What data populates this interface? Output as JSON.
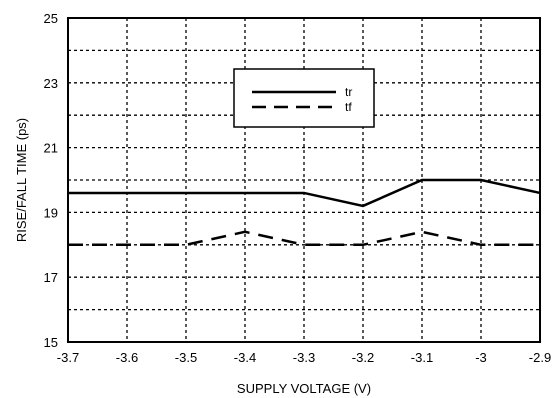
{
  "chart_data": {
    "type": "line",
    "title": "",
    "xlabel": "SUPPLY VOLTAGE (V)",
    "ylabel": "RISE/FALL TIME (ps)",
    "xlim": [
      -3.7,
      -2.9
    ],
    "ylim": [
      15,
      25
    ],
    "x_ticks": [
      "-3.7",
      "-3.6",
      "-3.5",
      "-3.4",
      "-3.3",
      "-3.2",
      "-3.1",
      "-3",
      "-2.9"
    ],
    "y_ticks": [
      "15",
      "17",
      "19",
      "21",
      "23",
      "25"
    ],
    "grid": true,
    "legend_position": "top-center",
    "series": [
      {
        "name": "tr",
        "style": "solid",
        "x": [
          -3.7,
          -3.6,
          -3.5,
          -3.4,
          -3.3,
          -3.2,
          -3.1,
          -3.0,
          -2.9
        ],
        "y": [
          19.6,
          19.6,
          19.6,
          19.6,
          19.6,
          19.2,
          20.0,
          20.0,
          19.6
        ]
      },
      {
        "name": "tf",
        "style": "dashed",
        "x": [
          -3.7,
          -3.6,
          -3.5,
          -3.4,
          -3.3,
          -3.2,
          -3.1,
          -3.0,
          -2.9
        ],
        "y": [
          18.0,
          18.0,
          18.0,
          18.4,
          18.0,
          18.0,
          18.4,
          18.0,
          18.0
        ]
      }
    ]
  }
}
